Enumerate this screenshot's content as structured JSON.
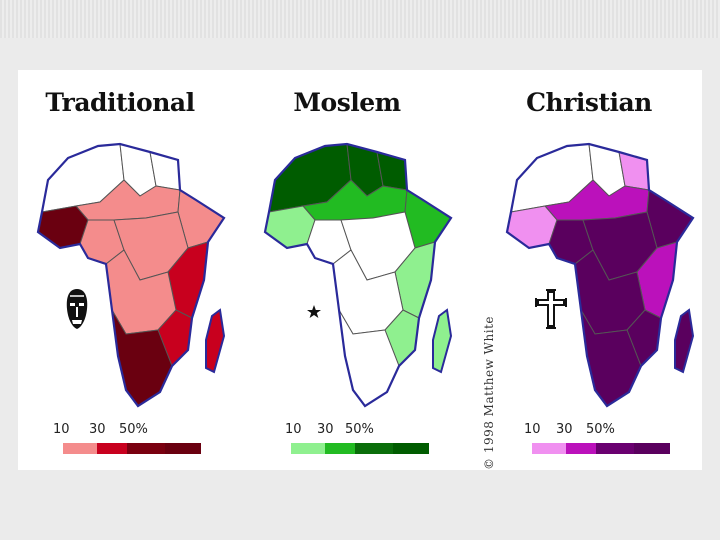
{
  "maps": [
    {
      "title": "Traditional",
      "symbol": "tribal-mask",
      "legend": {
        "labels": [
          "10",
          "30",
          "50%"
        ],
        "colors": [
          "#ffffff",
          "#f48c8c",
          "#c8001e",
          "#7a0010",
          "#6a0010"
        ]
      },
      "colors": {
        "none": "#ffffff",
        "low": "#f48c8c",
        "mid": "#c8001e",
        "high": "#6a0010"
      }
    },
    {
      "title": "Moslem",
      "symbol": "crescent-star",
      "legend": {
        "labels": [
          "10",
          "30",
          "50%"
        ],
        "colors": [
          "#ffffff",
          "#8ff08f",
          "#22bb22",
          "#0a6e0a",
          "#005c00"
        ]
      },
      "colors": {
        "none": "#ffffff",
        "low": "#8ff08f",
        "mid": "#22bb22",
        "high": "#005c00"
      }
    },
    {
      "title": "Christian",
      "symbol": "cross",
      "legend": {
        "labels": [
          "10",
          "30",
          "50%"
        ],
        "colors": [
          "#ffffff",
          "#f090f0",
          "#bb11bb",
          "#6a0070",
          "#5a005e"
        ]
      },
      "colors": {
        "none": "#ffffff",
        "low": "#f090f0",
        "mid": "#bb11bb",
        "high": "#5a005e"
      }
    }
  ],
  "copyright": "© 1998 Matthew White"
}
